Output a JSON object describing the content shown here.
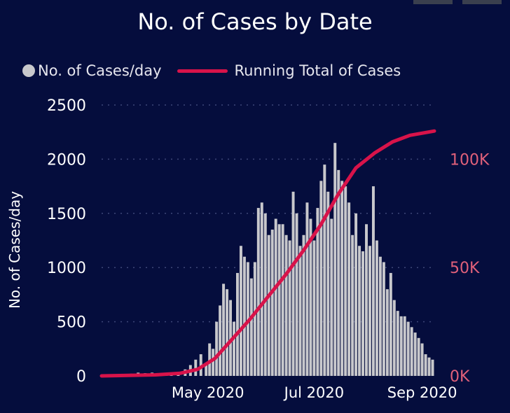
{
  "chart_data": {
    "type": "bar+line",
    "title": "No. of Cases by Date",
    "legend": [
      "No. of Cases/day",
      "Running Total of Cases"
    ],
    "legend_position": "top",
    "ylabel": "No. of Cases/day",
    "ylim": [
      0,
      2500
    ],
    "y_ticks": [
      "0",
      "500",
      "1000",
      "1500",
      "2000",
      "2500"
    ],
    "y2lim": [
      0,
      125000
    ],
    "y2_ticks": [
      "0K",
      "50K",
      "100K"
    ],
    "x_ticks": [
      "May 2020",
      "Jul 2020",
      "Sep 2020"
    ],
    "x_range": [
      "2020-03-01",
      "2020-09-08"
    ],
    "grid": true,
    "colors": {
      "bars": "#c8c8cc",
      "line": "#d8134a",
      "y2_ticks": "#e0607a"
    },
    "series": [
      {
        "name": "No. of Cases/day",
        "type": "bar",
        "points": [
          [
            "2020-03-12",
            10
          ],
          [
            "2020-03-18",
            20
          ],
          [
            "2020-03-22",
            30
          ],
          [
            "2020-03-26",
            25
          ],
          [
            "2020-03-30",
            30
          ],
          [
            "2020-04-03",
            20
          ],
          [
            "2020-04-07",
            15
          ],
          [
            "2020-04-10",
            25
          ],
          [
            "2020-04-14",
            30
          ],
          [
            "2020-04-18",
            60
          ],
          [
            "2020-04-21",
            100
          ],
          [
            "2020-04-24",
            150
          ],
          [
            "2020-04-27",
            200
          ],
          [
            "2020-04-30",
            120
          ],
          [
            "2020-05-02",
            300
          ],
          [
            "2020-05-04",
            250
          ],
          [
            "2020-05-06",
            500
          ],
          [
            "2020-05-08",
            650
          ],
          [
            "2020-05-10",
            850
          ],
          [
            "2020-05-12",
            800
          ],
          [
            "2020-05-14",
            700
          ],
          [
            "2020-05-16",
            500
          ],
          [
            "2020-05-18",
            950
          ],
          [
            "2020-05-20",
            1200
          ],
          [
            "2020-05-22",
            1100
          ],
          [
            "2020-05-24",
            1050
          ],
          [
            "2020-05-26",
            900
          ],
          [
            "2020-05-28",
            1050
          ],
          [
            "2020-05-30",
            1550
          ],
          [
            "2020-06-01",
            1600
          ],
          [
            "2020-06-03",
            1500
          ],
          [
            "2020-06-05",
            1300
          ],
          [
            "2020-06-07",
            1350
          ],
          [
            "2020-06-09",
            1450
          ],
          [
            "2020-06-11",
            1400
          ],
          [
            "2020-06-13",
            1400
          ],
          [
            "2020-06-15",
            1300
          ],
          [
            "2020-06-17",
            1250
          ],
          [
            "2020-06-19",
            1700
          ],
          [
            "2020-06-21",
            1500
          ],
          [
            "2020-06-23",
            1200
          ],
          [
            "2020-06-25",
            1300
          ],
          [
            "2020-06-27",
            1600
          ],
          [
            "2020-06-29",
            1450
          ],
          [
            "2020-07-01",
            1250
          ],
          [
            "2020-07-03",
            1550
          ],
          [
            "2020-07-05",
            1800
          ],
          [
            "2020-07-07",
            1950
          ],
          [
            "2020-07-09",
            1700
          ],
          [
            "2020-07-11",
            1450
          ],
          [
            "2020-07-13",
            2150
          ],
          [
            "2020-07-15",
            1900
          ],
          [
            "2020-07-17",
            1800
          ],
          [
            "2020-07-19",
            1750
          ],
          [
            "2020-07-21",
            1600
          ],
          [
            "2020-07-23",
            1300
          ],
          [
            "2020-07-25",
            1500
          ],
          [
            "2020-07-27",
            1200
          ],
          [
            "2020-07-29",
            1150
          ],
          [
            "2020-07-31",
            1400
          ],
          [
            "2020-08-02",
            1200
          ],
          [
            "2020-08-04",
            1750
          ],
          [
            "2020-08-06",
            1250
          ],
          [
            "2020-08-08",
            1100
          ],
          [
            "2020-08-10",
            1050
          ],
          [
            "2020-08-12",
            800
          ],
          [
            "2020-08-14",
            950
          ],
          [
            "2020-08-16",
            700
          ],
          [
            "2020-08-18",
            600
          ],
          [
            "2020-08-20",
            550
          ],
          [
            "2020-08-22",
            550
          ],
          [
            "2020-08-24",
            500
          ],
          [
            "2020-08-26",
            450
          ],
          [
            "2020-08-28",
            400
          ],
          [
            "2020-08-30",
            350
          ],
          [
            "2020-09-01",
            300
          ],
          [
            "2020-09-03",
            200
          ],
          [
            "2020-09-05",
            170
          ],
          [
            "2020-09-07",
            150
          ]
        ]
      },
      {
        "name": "Running Total of Cases",
        "type": "line",
        "axis": "right",
        "points": [
          [
            "2020-03-01",
            0
          ],
          [
            "2020-04-01",
            500
          ],
          [
            "2020-04-15",
            1200
          ],
          [
            "2020-04-25",
            3000
          ],
          [
            "2020-05-05",
            8000
          ],
          [
            "2020-05-15",
            17000
          ],
          [
            "2020-05-25",
            26000
          ],
          [
            "2020-06-05",
            37000
          ],
          [
            "2020-06-15",
            47000
          ],
          [
            "2020-06-25",
            58000
          ],
          [
            "2020-07-05",
            70000
          ],
          [
            "2020-07-15",
            84000
          ],
          [
            "2020-07-25",
            96000
          ],
          [
            "2020-08-05",
            103000
          ],
          [
            "2020-08-15",
            108000
          ],
          [
            "2020-08-25",
            111000
          ],
          [
            "2020-09-08",
            113000
          ]
        ]
      }
    ]
  }
}
